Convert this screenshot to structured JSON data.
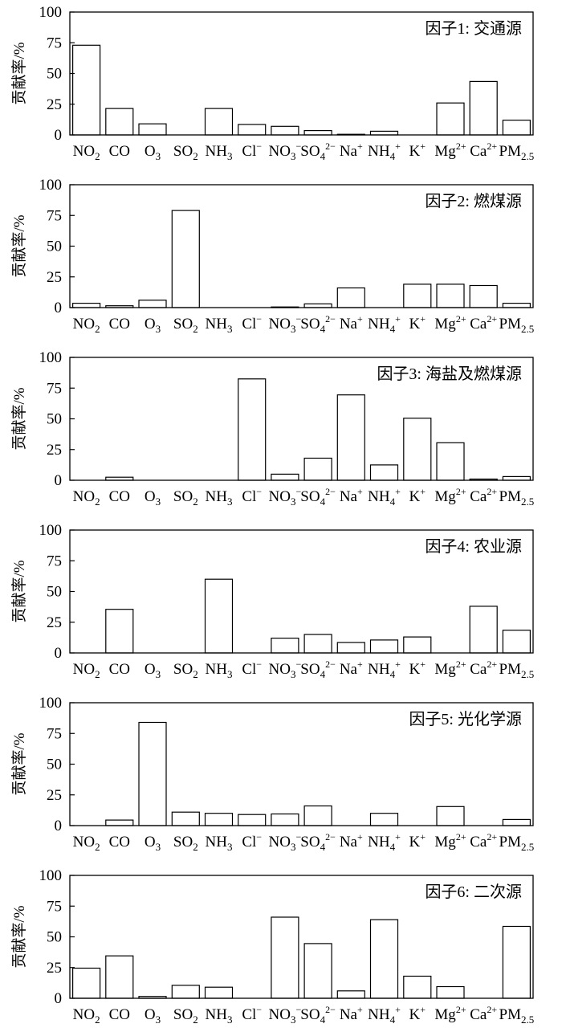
{
  "chart_data": [
    {
      "type": "bar",
      "title": "因子1: 交通源",
      "ylabel": "贡献率/%",
      "ylim": [
        0,
        100
      ],
      "yticks": [
        0,
        25,
        50,
        75,
        100
      ],
      "categories": [
        "NO2",
        "CO",
        "O3",
        "SO2",
        "NH3",
        "Cl-",
        "NO3-",
        "SO42-",
        "Na+",
        "NH4+",
        "K+",
        "Mg2+",
        "Ca2+",
        "PM2.5"
      ],
      "values": [
        73,
        21.5,
        9,
        0,
        21.5,
        8.5,
        7,
        3.5,
        0.5,
        3,
        0,
        26,
        43.5,
        12
      ]
    },
    {
      "type": "bar",
      "title": "因子2: 燃煤源",
      "ylabel": "贡献率/%",
      "ylim": [
        0,
        100
      ],
      "yticks": [
        0,
        25,
        50,
        75,
        100
      ],
      "categories": [
        "NO2",
        "CO",
        "O3",
        "SO2",
        "NH3",
        "Cl-",
        "NO3-",
        "SO42-",
        "Na+",
        "NH4+",
        "K+",
        "Mg2+",
        "Ca2+",
        "PM2.5"
      ],
      "values": [
        3.5,
        1.5,
        6,
        79,
        0,
        0,
        0.5,
        3,
        16,
        0,
        19,
        19,
        18,
        3.5
      ]
    },
    {
      "type": "bar",
      "title": "因子3: 海盐及燃煤源",
      "ylabel": "贡献率/%",
      "ylim": [
        0,
        100
      ],
      "yticks": [
        0,
        25,
        50,
        75,
        100
      ],
      "categories": [
        "NO2",
        "CO",
        "O3",
        "SO2",
        "NH3",
        "Cl-",
        "NO3-",
        "SO42-",
        "Na+",
        "NH4+",
        "K+",
        "Mg2+",
        "Ca2+",
        "PM2.5"
      ],
      "values": [
        0,
        2.5,
        0,
        0,
        0,
        82.5,
        5,
        18,
        69.5,
        12.5,
        50.5,
        30.5,
        1,
        3
      ]
    },
    {
      "type": "bar",
      "title": "因子4: 农业源",
      "ylabel": "贡献率/%",
      "ylim": [
        0,
        100
      ],
      "yticks": [
        0,
        25,
        50,
        75,
        100
      ],
      "categories": [
        "NO2",
        "CO",
        "O3",
        "SO2",
        "NH3",
        "Cl-",
        "NO3-",
        "SO42-",
        "Na+",
        "NH4+",
        "K+",
        "Mg2+",
        "Ca2+",
        "PM2.5"
      ],
      "values": [
        0,
        35.5,
        0,
        0,
        60,
        0,
        12,
        15,
        8.5,
        10.5,
        13,
        0,
        38,
        18.5
      ]
    },
    {
      "type": "bar",
      "title": "因子5: 光化学源",
      "ylabel": "贡献率/%",
      "ylim": [
        0,
        100
      ],
      "yticks": [
        0,
        25,
        50,
        75,
        100
      ],
      "categories": [
        "NO2",
        "CO",
        "O3",
        "SO2",
        "NH3",
        "Cl-",
        "NO3-",
        "SO42-",
        "Na+",
        "NH4+",
        "K+",
        "Mg2+",
        "Ca2+",
        "PM2.5"
      ],
      "values": [
        0,
        4.5,
        84,
        11,
        10,
        9,
        9.5,
        16,
        0,
        10,
        0,
        15.5,
        0,
        5
      ]
    },
    {
      "type": "bar",
      "title": "因子6: 二次源",
      "ylabel": "贡献率/%",
      "ylim": [
        0,
        100
      ],
      "yticks": [
        0,
        25,
        50,
        75,
        100
      ],
      "categories": [
        "NO2",
        "CO",
        "O3",
        "SO2",
        "NH3",
        "Cl-",
        "NO3-",
        "SO42-",
        "Na+",
        "NH4+",
        "K+",
        "Mg2+",
        "Ca2+",
        "PM2.5"
      ],
      "values": [
        24.5,
        34.5,
        1.5,
        10.5,
        9,
        0,
        66,
        44.5,
        6,
        64,
        18,
        9.5,
        0,
        58.5
      ]
    }
  ],
  "category_labels": [
    {
      "base": "NO",
      "sub": "2",
      "sup": ""
    },
    {
      "base": "CO",
      "sub": "",
      "sup": ""
    },
    {
      "base": "O",
      "sub": "3",
      "sup": ""
    },
    {
      "base": "SO",
      "sub": "2",
      "sup": ""
    },
    {
      "base": "NH",
      "sub": "3",
      "sup": ""
    },
    {
      "base": "Cl",
      "sub": "",
      "sup": "−"
    },
    {
      "base": "NO",
      "sub": "3",
      "sup": "−"
    },
    {
      "base": "SO",
      "sub": "4",
      "sup": "2−"
    },
    {
      "base": "Na",
      "sub": "",
      "sup": "+"
    },
    {
      "base": "NH",
      "sub": "4",
      "sup": "+"
    },
    {
      "base": "K",
      "sub": "",
      "sup": "+"
    },
    {
      "base": "Mg",
      "sub": "",
      "sup": "2+"
    },
    {
      "base": "Ca",
      "sub": "",
      "sup": "2+"
    },
    {
      "base": "PM",
      "sub": "2.5",
      "sup": ""
    }
  ]
}
